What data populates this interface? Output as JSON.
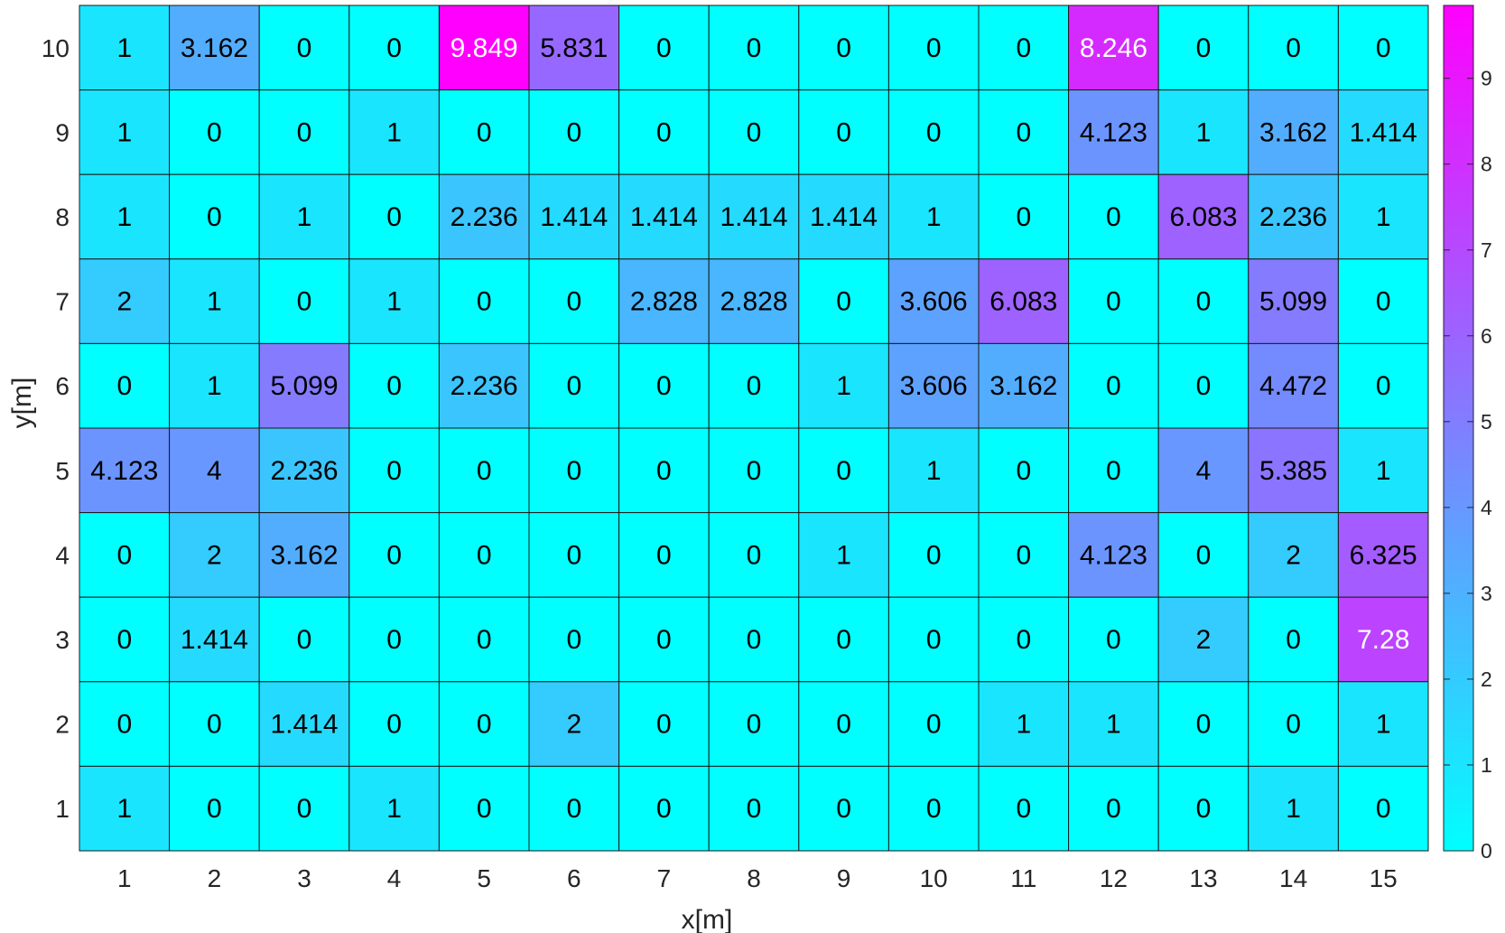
{
  "chart_data": {
    "type": "heatmap",
    "title": "",
    "xlabel": "x[m]",
    "ylabel": "y[m]",
    "x": [
      "1",
      "2",
      "3",
      "4",
      "5",
      "6",
      "7",
      "8",
      "9",
      "10",
      "11",
      "12",
      "13",
      "14",
      "15"
    ],
    "y": [
      "10",
      "9",
      "8",
      "7",
      "6",
      "5",
      "4",
      "3",
      "2",
      "1"
    ],
    "values": [
      [
        "1",
        "3.162",
        "0",
        "0",
        "9.849",
        "5.831",
        "0",
        "0",
        "0",
        "0",
        "0",
        "8.246",
        "0",
        "0",
        "0"
      ],
      [
        "1",
        "0",
        "0",
        "1",
        "0",
        "0",
        "0",
        "0",
        "0",
        "0",
        "0",
        "4.123",
        "1",
        "3.162",
        "1.414"
      ],
      [
        "1",
        "0",
        "1",
        "0",
        "2.236",
        "1.414",
        "1.414",
        "1.414",
        "1.414",
        "1",
        "0",
        "0",
        "6.083",
        "2.236",
        "1"
      ],
      [
        "2",
        "1",
        "0",
        "1",
        "0",
        "0",
        "2.828",
        "2.828",
        "0",
        "3.606",
        "6.083",
        "0",
        "0",
        "5.099",
        "0"
      ],
      [
        "0",
        "1",
        "5.099",
        "0",
        "2.236",
        "0",
        "0",
        "0",
        "1",
        "3.606",
        "3.162",
        "0",
        "0",
        "4.472",
        "0"
      ],
      [
        "4.123",
        "4",
        "2.236",
        "0",
        "0",
        "0",
        "0",
        "0",
        "0",
        "1",
        "0",
        "0",
        "4",
        "5.385",
        "1"
      ],
      [
        "0",
        "2",
        "3.162",
        "0",
        "0",
        "0",
        "0",
        "0",
        "1",
        "0",
        "0",
        "4.123",
        "0",
        "2",
        "6.325"
      ],
      [
        "0",
        "1.414",
        "0",
        "0",
        "0",
        "0",
        "0",
        "0",
        "0",
        "0",
        "0",
        "0",
        "2",
        "0",
        "7.28"
      ],
      [
        "0",
        "0",
        "1.414",
        "0",
        "0",
        "2",
        "0",
        "0",
        "0",
        "0",
        "1",
        "1",
        "0",
        "0",
        "1"
      ],
      [
        "1",
        "0",
        "0",
        "1",
        "0",
        "0",
        "0",
        "0",
        "0",
        "0",
        "0",
        "0",
        "0",
        "1",
        "0"
      ]
    ],
    "colormap": "cool",
    "color_min": "#00ffff",
    "color_max": "#ff00ff",
    "clim": [
      0,
      9.849
    ],
    "colorbar_ticks": [
      "0",
      "1",
      "2",
      "3",
      "4",
      "5",
      "6",
      "7",
      "8",
      "9"
    ],
    "grid": true,
    "legend": "colorbar-right"
  }
}
